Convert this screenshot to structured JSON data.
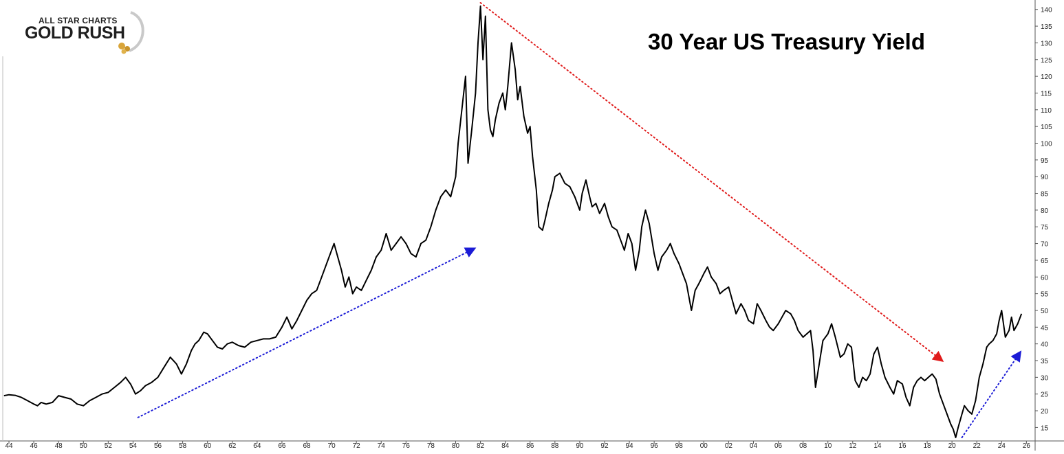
{
  "logo": {
    "line1": "ALL STAR CHARTS",
    "line2": "GOLD RUSH"
  },
  "colors": {
    "price_line": "#000000",
    "up_trend": "#1b1bd6",
    "down_trend": "#e01b1b",
    "axis": "#555555"
  },
  "chart_data": {
    "type": "line",
    "title": "30 Year US Treasury Yield",
    "xlabel": "",
    "ylabel": "",
    "ylim": [
      12,
      142
    ],
    "xlim": [
      1943.5,
      2026.7
    ],
    "y_ticks": [
      15,
      20,
      25,
      30,
      35,
      40,
      45,
      50,
      55,
      60,
      65,
      70,
      75,
      80,
      85,
      90,
      95,
      100,
      105,
      110,
      115,
      120,
      125,
      130,
      135,
      140
    ],
    "x_ticks": [
      {
        "year": 1944,
        "label": "44"
      },
      {
        "year": 1946,
        "label": "46"
      },
      {
        "year": 1948,
        "label": "48"
      },
      {
        "year": 1950,
        "label": "50"
      },
      {
        "year": 1952,
        "label": "52"
      },
      {
        "year": 1954,
        "label": "54"
      },
      {
        "year": 1956,
        "label": "56"
      },
      {
        "year": 1958,
        "label": "58"
      },
      {
        "year": 1960,
        "label": "60"
      },
      {
        "year": 1962,
        "label": "62"
      },
      {
        "year": 1964,
        "label": "64"
      },
      {
        "year": 1966,
        "label": "66"
      },
      {
        "year": 1968,
        "label": "68"
      },
      {
        "year": 1970,
        "label": "70"
      },
      {
        "year": 1972,
        "label": "72"
      },
      {
        "year": 1974,
        "label": "74"
      },
      {
        "year": 1976,
        "label": "76"
      },
      {
        "year": 1978,
        "label": "78"
      },
      {
        "year": 1980,
        "label": "80"
      },
      {
        "year": 1982,
        "label": "82"
      },
      {
        "year": 1984,
        "label": "84"
      },
      {
        "year": 1986,
        "label": "86"
      },
      {
        "year": 1988,
        "label": "88"
      },
      {
        "year": 1990,
        "label": "90"
      },
      {
        "year": 1992,
        "label": "92"
      },
      {
        "year": 1994,
        "label": "94"
      },
      {
        "year": 1996,
        "label": "96"
      },
      {
        "year": 1998,
        "label": "98"
      },
      {
        "year": 2000,
        "label": "00"
      },
      {
        "year": 2002,
        "label": "02"
      },
      {
        "year": 2004,
        "label": "04"
      },
      {
        "year": 2006,
        "label": "06"
      },
      {
        "year": 2008,
        "label": "08"
      },
      {
        "year": 2010,
        "label": "10"
      },
      {
        "year": 2012,
        "label": "12"
      },
      {
        "year": 2014,
        "label": "14"
      },
      {
        "year": 2016,
        "label": "16"
      },
      {
        "year": 2018,
        "label": "18"
      },
      {
        "year": 2020,
        "label": "20"
      },
      {
        "year": 2022,
        "label": "22"
      },
      {
        "year": 2024,
        "label": "24"
      },
      {
        "year": 2026,
        "label": "26"
      }
    ],
    "grid": false,
    "series": [
      {
        "x": [
          1943.6,
          1944.0,
          1944.5,
          1945.0,
          1945.5,
          1946.0,
          1946.3,
          1946.6,
          1947.0,
          1947.5,
          1948.0,
          1948.5,
          1949.0,
          1949.5,
          1950.0,
          1950.5,
          1951.0,
          1951.5,
          1952.0,
          1952.5,
          1953.0,
          1953.4,
          1953.8,
          1954.2,
          1954.6,
          1955.0,
          1955.5,
          1956.0,
          1956.5,
          1957.0,
          1957.5,
          1957.9,
          1958.3,
          1958.7,
          1959.0,
          1959.3,
          1959.7,
          1960.0,
          1960.4,
          1960.8,
          1961.2,
          1961.6,
          1962.0,
          1962.5,
          1963.0,
          1963.5,
          1964.0,
          1964.5,
          1965.0,
          1965.5,
          1966.0,
          1966.4,
          1966.8,
          1967.2,
          1967.6,
          1968.0,
          1968.4,
          1968.8,
          1969.2,
          1969.6,
          1970.0,
          1970.2,
          1970.5,
          1970.8,
          1971.1,
          1971.4,
          1971.7,
          1972.0,
          1972.4,
          1972.8,
          1973.2,
          1973.6,
          1974.0,
          1974.4,
          1974.8,
          1975.2,
          1975.6,
          1976.0,
          1976.4,
          1976.8,
          1977.2,
          1977.6,
          1978.0,
          1978.4,
          1978.8,
          1979.2,
          1979.6,
          1980.0,
          1980.2,
          1980.5,
          1980.8,
          1981.0,
          1981.3,
          1981.6,
          1981.8,
          1982.0,
          1982.2,
          1982.4,
          1982.6,
          1982.8,
          1983.0,
          1983.2,
          1983.5,
          1983.8,
          1984.0,
          1984.2,
          1984.5,
          1984.8,
          1985.0,
          1985.2,
          1985.5,
          1985.8,
          1986.0,
          1986.2,
          1986.5,
          1986.7,
          1987.0,
          1987.2,
          1987.5,
          1987.8,
          1988.0,
          1988.4,
          1988.8,
          1989.2,
          1989.6,
          1990.0,
          1990.2,
          1990.5,
          1990.8,
          1991.0,
          1991.3,
          1991.6,
          1992.0,
          1992.3,
          1992.6,
          1993.0,
          1993.3,
          1993.6,
          1993.9,
          1994.2,
          1994.5,
          1994.8,
          1995.0,
          1995.3,
          1995.6,
          1996.0,
          1996.3,
          1996.6,
          1997.0,
          1997.3,
          1997.6,
          1998.0,
          1998.3,
          1998.6,
          1998.8,
          1999.0,
          1999.3,
          1999.6,
          2000.0,
          2000.3,
          2000.6,
          2001.0,
          2001.3,
          2001.6,
          2002.0,
          2002.3,
          2002.6,
          2003.0,
          2003.3,
          2003.6,
          2004.0,
          2004.3,
          2004.6,
          2005.0,
          2005.3,
          2005.6,
          2006.0,
          2006.3,
          2006.6,
          2007.0,
          2007.3,
          2007.6,
          2008.0,
          2008.3,
          2008.6,
          2008.8,
          2009.0,
          2009.3,
          2009.6,
          2010.0,
          2010.3,
          2010.6,
          2011.0,
          2011.3,
          2011.6,
          2011.9,
          2012.2,
          2012.5,
          2012.8,
          2013.1,
          2013.4,
          2013.7,
          2014.0,
          2014.3,
          2014.6,
          2015.0,
          2015.3,
          2015.6,
          2016.0,
          2016.3,
          2016.6,
          2016.9,
          2017.2,
          2017.5,
          2017.8,
          2018.1,
          2018.4,
          2018.7,
          2019.0,
          2019.3,
          2019.6,
          2019.9,
          2020.1,
          2020.3,
          2020.5,
          2020.8,
          2021.0,
          2021.3,
          2021.6,
          2021.9,
          2022.2,
          2022.5,
          2022.8,
          2023.0,
          2023.3,
          2023.6,
          2023.8,
          2024.0,
          2024.3,
          2024.6,
          2024.8,
          2025.0,
          2025.3,
          2025.6
        ],
        "y": [
          24.5,
          24.8,
          24.6,
          24.0,
          23.0,
          22.0,
          21.5,
          22.5,
          22.0,
          22.5,
          24.5,
          24.0,
          23.5,
          22.0,
          21.5,
          23.0,
          24.0,
          25.0,
          25.5,
          27.0,
          28.5,
          30.0,
          28.0,
          25.0,
          26.0,
          27.5,
          28.5,
          30.0,
          33.0,
          36.0,
          34.0,
          31.0,
          34.0,
          38.0,
          40.0,
          41.0,
          43.5,
          43.0,
          41.0,
          39.0,
          38.5,
          40.0,
          40.5,
          39.5,
          39.0,
          40.5,
          41.0,
          41.5,
          41.5,
          42.0,
          45.0,
          48.0,
          44.5,
          47.0,
          50.0,
          53.0,
          55.0,
          56.0,
          60.0,
          64.0,
          68.0,
          70.0,
          66.0,
          62.0,
          57.0,
          60.0,
          55.0,
          57.0,
          56.0,
          59.0,
          62.0,
          66.0,
          68.0,
          73.0,
          68.0,
          70.0,
          72.0,
          70.0,
          67.0,
          66.0,
          70.0,
          71.0,
          75.0,
          80.0,
          84.0,
          86.0,
          84.0,
          90.0,
          100.0,
          110.0,
          120.0,
          94.0,
          104.0,
          115.0,
          130.0,
          141.0,
          125.0,
          138.0,
          110.0,
          104.0,
          102.0,
          107.0,
          112.0,
          115.0,
          110.0,
          117.0,
          130.0,
          122.0,
          113.0,
          117.0,
          108.0,
          103.0,
          105.0,
          96.0,
          86.0,
          75.0,
          74.0,
          77.0,
          82.0,
          86.0,
          90.0,
          91.0,
          88.0,
          87.0,
          84.0,
          80.0,
          85.0,
          89.0,
          84.0,
          81.0,
          82.0,
          79.0,
          82.0,
          78.0,
          75.0,
          74.0,
          71.0,
          68.0,
          73.0,
          70.0,
          62.0,
          68.0,
          75.0,
          80.0,
          76.0,
          67.0,
          62.0,
          66.0,
          68.0,
          70.0,
          67.0,
          64.0,
          61.0,
          58.0,
          54.0,
          50.0,
          56.0,
          58.0,
          61.0,
          63.0,
          60.0,
          58.0,
          55.0,
          56.0,
          57.0,
          53.0,
          49.0,
          52.0,
          50.0,
          47.0,
          46.0,
          52.0,
          50.0,
          47.0,
          45.0,
          44.0,
          46.0,
          48.0,
          50.0,
          49.0,
          47.0,
          44.0,
          42.0,
          43.0,
          44.0,
          38.0,
          27.0,
          34.0,
          41.0,
          43.0,
          46.0,
          42.0,
          36.0,
          37.0,
          40.0,
          39.0,
          29.0,
          27.0,
          30.0,
          29.0,
          31.0,
          37.0,
          39.0,
          34.0,
          30.0,
          27.0,
          25.0,
          29.0,
          28.0,
          24.0,
          21.5,
          27.0,
          29.0,
          30.0,
          29.0,
          30.0,
          31.0,
          29.5,
          25.0,
          22.0,
          19.0,
          16.0,
          14.5,
          12.0,
          15.0,
          19.0,
          21.5,
          20.0,
          19.0,
          23.0,
          30.0,
          34.0,
          39.0,
          40.0,
          41.0,
          43.0,
          47.0,
          50.0,
          42.0,
          44.0,
          48.0,
          44.0,
          46.0,
          49.0
        ]
      }
    ],
    "trendlines": [
      {
        "x": [
          1954.4,
          1981.5
        ],
        "y": [
          18.0,
          68.5
        ],
        "color": "up_trend",
        "arrow_end": true
      },
      {
        "x": [
          1982.0,
          2019.2
        ],
        "y": [
          142.0,
          35.0
        ],
        "color": "down_trend",
        "arrow_end": true
      },
      {
        "x": [
          2020.8,
          2025.5
        ],
        "y": [
          12.0,
          37.5
        ],
        "color": "up_trend",
        "arrow_end": true
      }
    ],
    "legend": "none"
  }
}
